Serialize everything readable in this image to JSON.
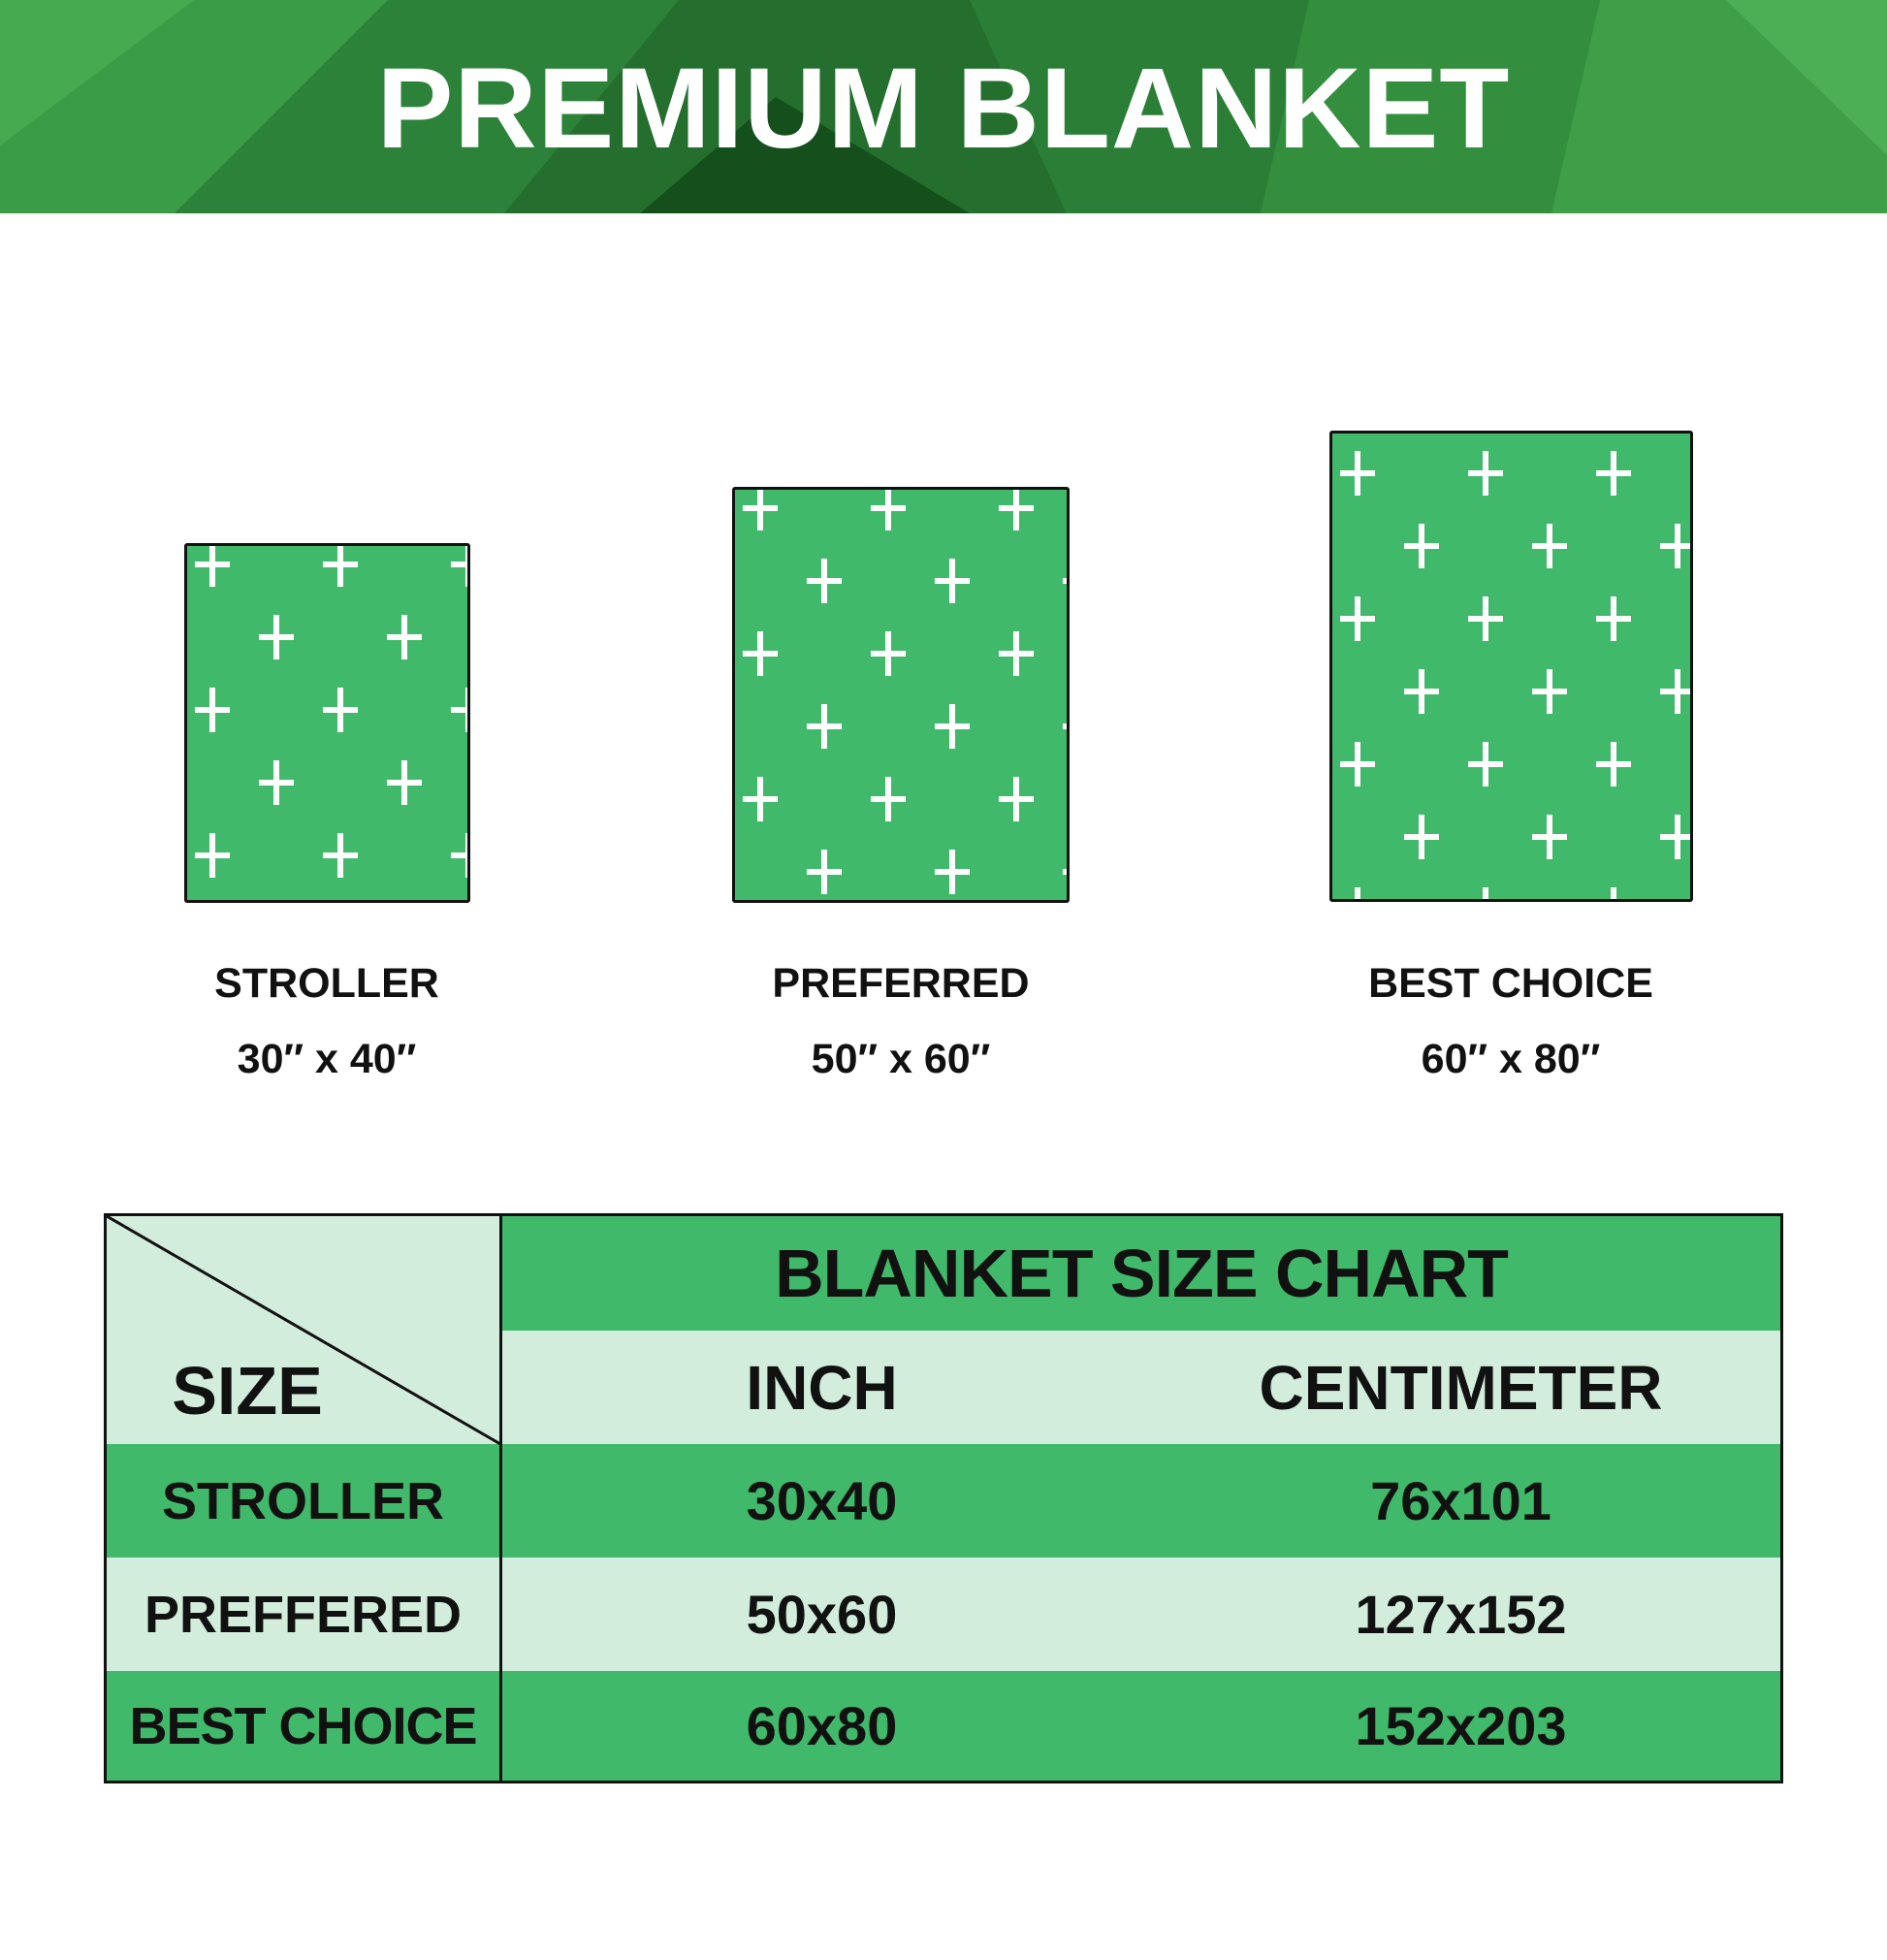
{
  "header": {
    "title": "PREMIUM BLANKET"
  },
  "colors": {
    "green": "#41b96b",
    "light_green": "#d2eddc",
    "header_green": "#2f8f3f",
    "pattern": "white-plus-crosses"
  },
  "blankets": [
    {
      "name": "STROLLER",
      "size": "30″ x 40″"
    },
    {
      "name": "PREFERRED",
      "size": "50″ x 60″"
    },
    {
      "name": "BEST CHOICE",
      "size": "60″ x 80″"
    }
  ],
  "table": {
    "title": "BLANKET SIZE CHART",
    "corner_label": "SIZE",
    "columns": [
      "INCH",
      "CENTIMETER"
    ],
    "rows": [
      {
        "name": "STROLLER",
        "inch": "30x40",
        "cm": "76x101"
      },
      {
        "name": "PREFFERED",
        "inch": "50x60",
        "cm": "127x152"
      },
      {
        "name": "BEST CHOICE",
        "inch": "60x80",
        "cm": "152x203"
      }
    ]
  }
}
